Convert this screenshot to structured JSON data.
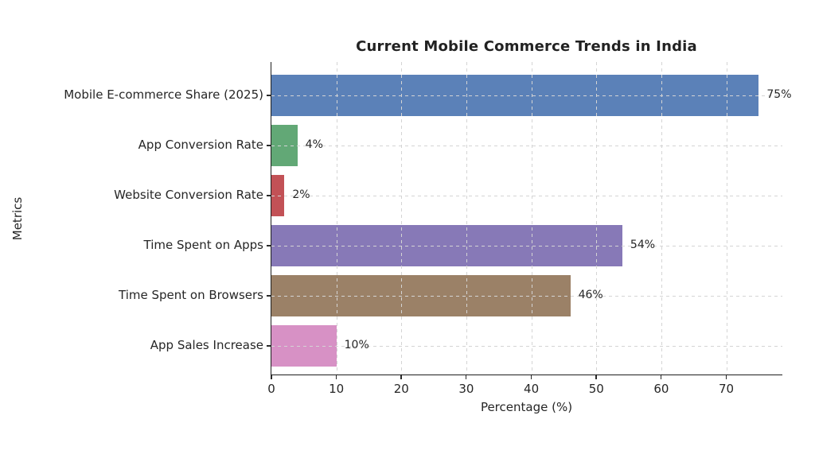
{
  "chart_data": {
    "type": "bar",
    "orientation": "horizontal",
    "title": "Current Mobile Commerce Trends in India",
    "xlabel": "Percentage (%)",
    "ylabel": "Metrics",
    "categories": [
      "Mobile E-commerce Share (2025)",
      "App Conversion Rate",
      "Website Conversion Rate",
      "Time Spent on Apps",
      "Time Spent on Browsers",
      "App Sales Increase"
    ],
    "values": [
      75,
      4,
      2,
      54,
      46,
      10
    ],
    "value_labels": [
      "75%",
      "4%",
      "2%",
      "54%",
      "46%",
      "10%"
    ],
    "bar_colors": [
      "#5b81b8",
      "#62a876",
      "#c25156",
      "#8779b7",
      "#9b8167",
      "#d791c5"
    ],
    "x_ticks": [
      0,
      10,
      20,
      30,
      40,
      50,
      60,
      70
    ],
    "xlim": [
      0,
      78.75
    ],
    "grid": "dashed light-gray gridlines on both axes, drawn above bars",
    "legend": "none",
    "background_color": "#ffffff",
    "axis_color": "#1f1f1f",
    "grid_color": "#d4d4d4",
    "text_color": "#262626"
  }
}
